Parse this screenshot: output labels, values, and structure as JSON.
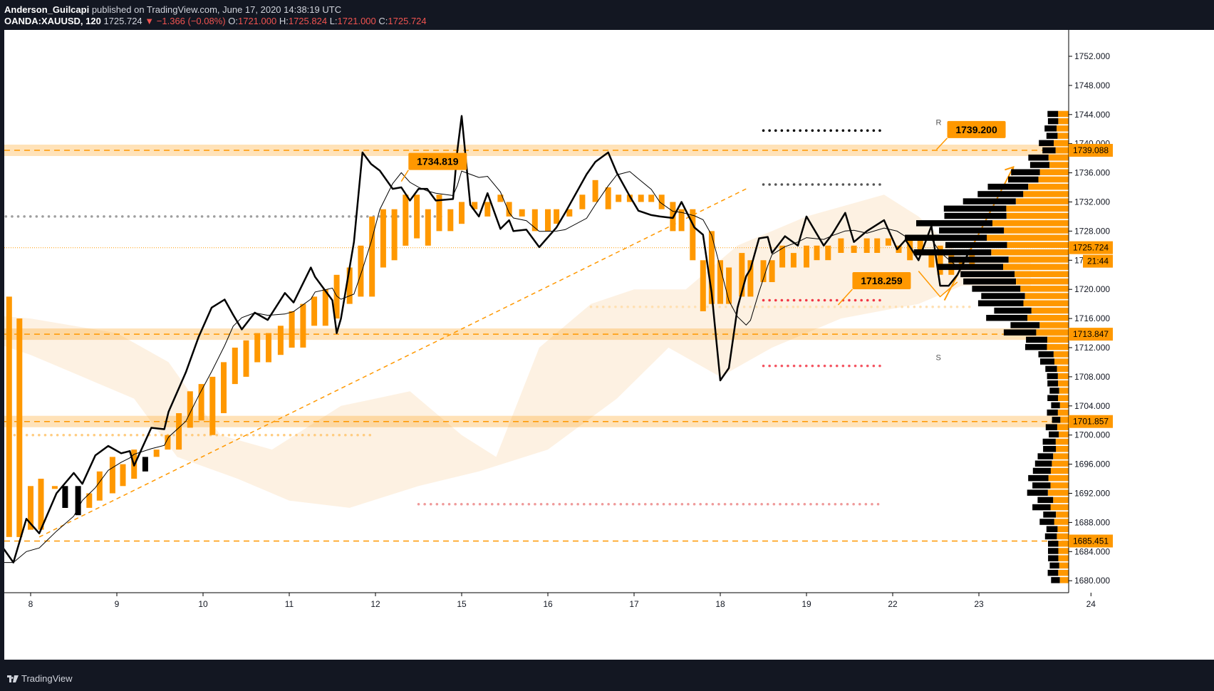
{
  "header": {
    "author": "Anderson_Guilcapi",
    "published": " published on TradingView.com, June 17, 2020 14:38:19 UTC",
    "symbol": "OANDA:XAUUSD, 120",
    "last": "1725.724",
    "change": "▼ −1.366 (−0.08%)",
    "o_label": "O:",
    "o": "1721.000",
    "h_label": "H:",
    "h": "1725.824",
    "l_label": "L:",
    "l": "1721.000",
    "c_label": "C:",
    "c": "1725.724"
  },
  "footer": {
    "brand": "TradingView"
  },
  "colors": {
    "orange": "#ff9800",
    "black": "#000000",
    "red": "#f23645",
    "cloud": "#fdeedb",
    "bg": "#131722"
  },
  "chart_data": {
    "type": "line",
    "ylim": [
      1678.0,
      1755.0
    ],
    "xlabels": [
      "8",
      "9",
      "10",
      "11",
      "12",
      "15",
      "16",
      "17",
      "18",
      "19",
      "22",
      "23",
      "24"
    ],
    "yticks": [
      "1752.000",
      "1748.000",
      "1744.000",
      "1740.000",
      "1736.000",
      "1732.000",
      "1728.000",
      "1724.000",
      "1720.000",
      "1716.000",
      "1712.000",
      "1708.000",
      "1704.000",
      "1700.000",
      "1696.000",
      "1692.000",
      "1688.000",
      "1684.000",
      "1680.000"
    ],
    "ytick_values": [
      1752,
      1748,
      1744,
      1740,
      1736,
      1732,
      1728,
      1724,
      1720,
      1716,
      1712,
      1708,
      1704,
      1700,
      1696,
      1692,
      1688,
      1684,
      1680
    ],
    "levels": [
      {
        "label": "1739.088",
        "value": 1739.088
      },
      {
        "label": "1713.847",
        "value": 1713.847
      },
      {
        "label": "1701.857",
        "value": 1701.857
      },
      {
        "label": "1685.451",
        "value": 1685.451
      }
    ],
    "current_price": {
      "label": "1725.724",
      "value": 1725.724,
      "countdown": "21:44"
    },
    "callouts": [
      {
        "label": "1734.819",
        "value": 1734.819,
        "slot": 12.3
      },
      {
        "label": "1739.200",
        "value": 1739.2,
        "slot": 18.55
      },
      {
        "label": "1718.259",
        "value": 1718.259,
        "slot": 17.45
      }
    ],
    "pivot_marks": [
      "R",
      "S"
    ],
    "price_path": [
      [
        7.5,
        1680.5
      ],
      [
        7.68,
        1684.5
      ],
      [
        7.8,
        1682.5
      ],
      [
        7.95,
        1688.5
      ],
      [
        8.1,
        1686.5
      ],
      [
        8.3,
        1692
      ],
      [
        8.5,
        1694.8
      ],
      [
        8.6,
        1693.3
      ],
      [
        8.75,
        1697.2
      ],
      [
        8.9,
        1698.5
      ],
      [
        9.05,
        1697.5
      ],
      [
        9.15,
        1697.8
      ],
      [
        9.2,
        1695.8
      ],
      [
        9.4,
        1701
      ],
      [
        9.55,
        1700.8
      ],
      [
        9.6,
        1703.2
      ],
      [
        9.8,
        1708.6
      ],
      [
        9.95,
        1713.5
      ],
      [
        10.1,
        1717.5
      ],
      [
        10.25,
        1718.6
      ],
      [
        10.35,
        1716.5
      ],
      [
        10.45,
        1714.5
      ],
      [
        10.6,
        1716.8
      ],
      [
        10.75,
        1715.8
      ],
      [
        10.95,
        1719.5
      ],
      [
        11.05,
        1718.2
      ],
      [
        11.25,
        1723
      ],
      [
        11.3,
        1721.7
      ],
      [
        11.5,
        1718.5
      ],
      [
        11.55,
        1714
      ],
      [
        11.6,
        1716
      ],
      [
        11.75,
        1726.5
      ],
      [
        11.85,
        1738.8
      ],
      [
        11.95,
        1737.2
      ],
      [
        12.05,
        1736.3
      ],
      [
        12.2,
        1733.8
      ],
      [
        12.3,
        1734
      ],
      [
        12.4,
        1732.2
      ],
      [
        12.5,
        1733.8
      ],
      [
        12.6,
        1733.8
      ],
      [
        12.7,
        1732.2
      ],
      [
        12.9,
        1732.4
      ],
      [
        12.95,
        1739
      ],
      [
        13.0,
        1743.8
      ],
      [
        13.1,
        1731.6
      ],
      [
        13.2,
        1730
      ],
      [
        13.3,
        1733.2
      ],
      [
        13.45,
        1728.3
      ],
      [
        13.55,
        1729.5
      ],
      [
        13.6,
        1728
      ],
      [
        13.75,
        1728.2
      ],
      [
        13.9,
        1725.8
      ],
      [
        14.1,
        1728.5
      ],
      [
        14.2,
        1730.5
      ],
      [
        14.45,
        1735.8
      ],
      [
        14.55,
        1737.5
      ],
      [
        14.7,
        1738.8
      ],
      [
        14.8,
        1736
      ],
      [
        14.95,
        1732.8
      ],
      [
        15.05,
        1730.8
      ],
      [
        15.2,
        1730.2
      ],
      [
        15.3,
        1730
      ],
      [
        15.45,
        1729.8
      ],
      [
        15.55,
        1732
      ],
      [
        15.7,
        1728.5
      ],
      [
        15.8,
        1727.5
      ],
      [
        15.9,
        1719.5
      ],
      [
        16.0,
        1707.5
      ],
      [
        16.1,
        1709.2
      ],
      [
        16.2,
        1717.5
      ],
      [
        16.3,
        1721.8
      ],
      [
        16.35,
        1722.8
      ],
      [
        16.45,
        1727
      ],
      [
        16.55,
        1727.2
      ],
      [
        16.6,
        1725
      ],
      [
        16.75,
        1727.3
      ],
      [
        16.9,
        1726
      ],
      [
        17.0,
        1730
      ],
      [
        17.2,
        1726
      ],
      [
        17.3,
        1727.6
      ],
      [
        17.45,
        1730.5
      ],
      [
        17.55,
        1726.5
      ],
      [
        17.7,
        1728
      ],
      [
        17.9,
        1729.5
      ],
      [
        18.05,
        1725.5
      ],
      [
        18.15,
        1726.8
      ],
      [
        18.3,
        1724
      ],
      [
        18.45,
        1728.7
      ],
      [
        18.55,
        1720.5
      ],
      [
        18.65,
        1720.5
      ],
      [
        18.75,
        1722
      ],
      [
        18.9,
        1725.5
      ]
    ],
    "bars": [
      [
        7.5,
        1686,
        1717
      ],
      [
        7.62,
        1686,
        1706
      ],
      [
        7.75,
        1686,
        1719
      ],
      [
        7.87,
        1686,
        1716
      ],
      [
        8.0,
        1687,
        1693
      ],
      [
        8.12,
        1687,
        1694
      ],
      [
        8.28,
        1693,
        1693
      ],
      [
        8.4,
        1693,
        1690
      ],
      [
        8.55,
        1693,
        1689
      ],
      [
        8.68,
        1690,
        1692
      ],
      [
        8.8,
        1691,
        1695
      ],
      [
        8.95,
        1692,
        1697
      ],
      [
        9.07,
        1693,
        1696
      ],
      [
        9.2,
        1694,
        1698
      ],
      [
        9.33,
        1697,
        1695
      ],
      [
        9.46,
        1697,
        1698
      ],
      [
        9.59,
        1698,
        1700
      ],
      [
        9.72,
        1698,
        1703
      ],
      [
        9.85,
        1701,
        1706
      ],
      [
        9.98,
        1702,
        1707
      ],
      [
        10.11,
        1700,
        1708
      ],
      [
        10.24,
        1703,
        1710
      ],
      [
        10.37,
        1707,
        1712
      ],
      [
        10.5,
        1708,
        1713
      ],
      [
        10.63,
        1710,
        1714
      ],
      [
        10.76,
        1710,
        1714
      ],
      [
        10.9,
        1711,
        1715
      ],
      [
        11.03,
        1712,
        1717
      ],
      [
        11.16,
        1712,
        1718
      ],
      [
        11.29,
        1715,
        1719
      ],
      [
        11.42,
        1715,
        1720
      ],
      [
        11.55,
        1716,
        1722
      ],
      [
        11.7,
        1718,
        1723
      ],
      [
        11.83,
        1719,
        1726
      ],
      [
        11.96,
        1719,
        1730
      ],
      [
        12.09,
        1723,
        1731
      ],
      [
        12.22,
        1724,
        1731
      ],
      [
        12.35,
        1726,
        1733
      ],
      [
        12.48,
        1727,
        1733
      ],
      [
        12.61,
        1726,
        1731
      ],
      [
        12.74,
        1728,
        1733
      ],
      [
        12.87,
        1728,
        1731
      ],
      [
        13.0,
        1729,
        1732
      ],
      [
        13.15,
        1731,
        1732
      ],
      [
        13.3,
        1730,
        1732
      ],
      [
        13.45,
        1732,
        1733
      ],
      [
        13.55,
        1730,
        1732
      ],
      [
        13.7,
        1730,
        1731
      ],
      [
        13.85,
        1728,
        1731
      ],
      [
        14.0,
        1728,
        1731
      ],
      [
        14.1,
        1729,
        1731
      ],
      [
        14.25,
        1730,
        1731
      ],
      [
        14.4,
        1731,
        1733
      ],
      [
        14.55,
        1732,
        1735
      ],
      [
        14.7,
        1731,
        1734
      ],
      [
        14.82,
        1732,
        1733
      ],
      [
        14.95,
        1732,
        1733
      ],
      [
        15.08,
        1732,
        1733
      ],
      [
        15.2,
        1732,
        1733
      ],
      [
        15.32,
        1731,
        1733
      ],
      [
        15.45,
        1728,
        1732
      ],
      [
        15.55,
        1728,
        1731
      ],
      [
        15.68,
        1724,
        1731
      ],
      [
        15.8,
        1717,
        1724
      ],
      [
        15.9,
        1718,
        1728
      ],
      [
        16.0,
        1718,
        1724
      ],
      [
        16.1,
        1718,
        1723
      ],
      [
        16.25,
        1719,
        1725
      ],
      [
        16.35,
        1719,
        1724
      ],
      [
        16.5,
        1721,
        1724
      ],
      [
        16.6,
        1721,
        1724
      ],
      [
        16.72,
        1723,
        1726
      ],
      [
        16.85,
        1723,
        1725
      ],
      [
        17.0,
        1723,
        1726
      ],
      [
        17.12,
        1724,
        1726
      ],
      [
        17.25,
        1724,
        1726
      ],
      [
        17.4,
        1725,
        1727
      ],
      [
        17.55,
        1725,
        1726
      ],
      [
        17.7,
        1725,
        1727
      ],
      [
        17.82,
        1725,
        1727
      ],
      [
        17.95,
        1726,
        1727
      ],
      [
        18.07,
        1725,
        1726
      ],
      [
        18.2,
        1724,
        1727
      ],
      [
        18.32,
        1725,
        1727
      ],
      [
        18.45,
        1723,
        1725
      ],
      [
        18.55,
        1722,
        1726
      ],
      [
        18.68,
        1722,
        1725
      ],
      [
        18.8,
        1723,
        1724
      ],
      [
        18.92,
        1723,
        1725
      ]
    ]
  }
}
